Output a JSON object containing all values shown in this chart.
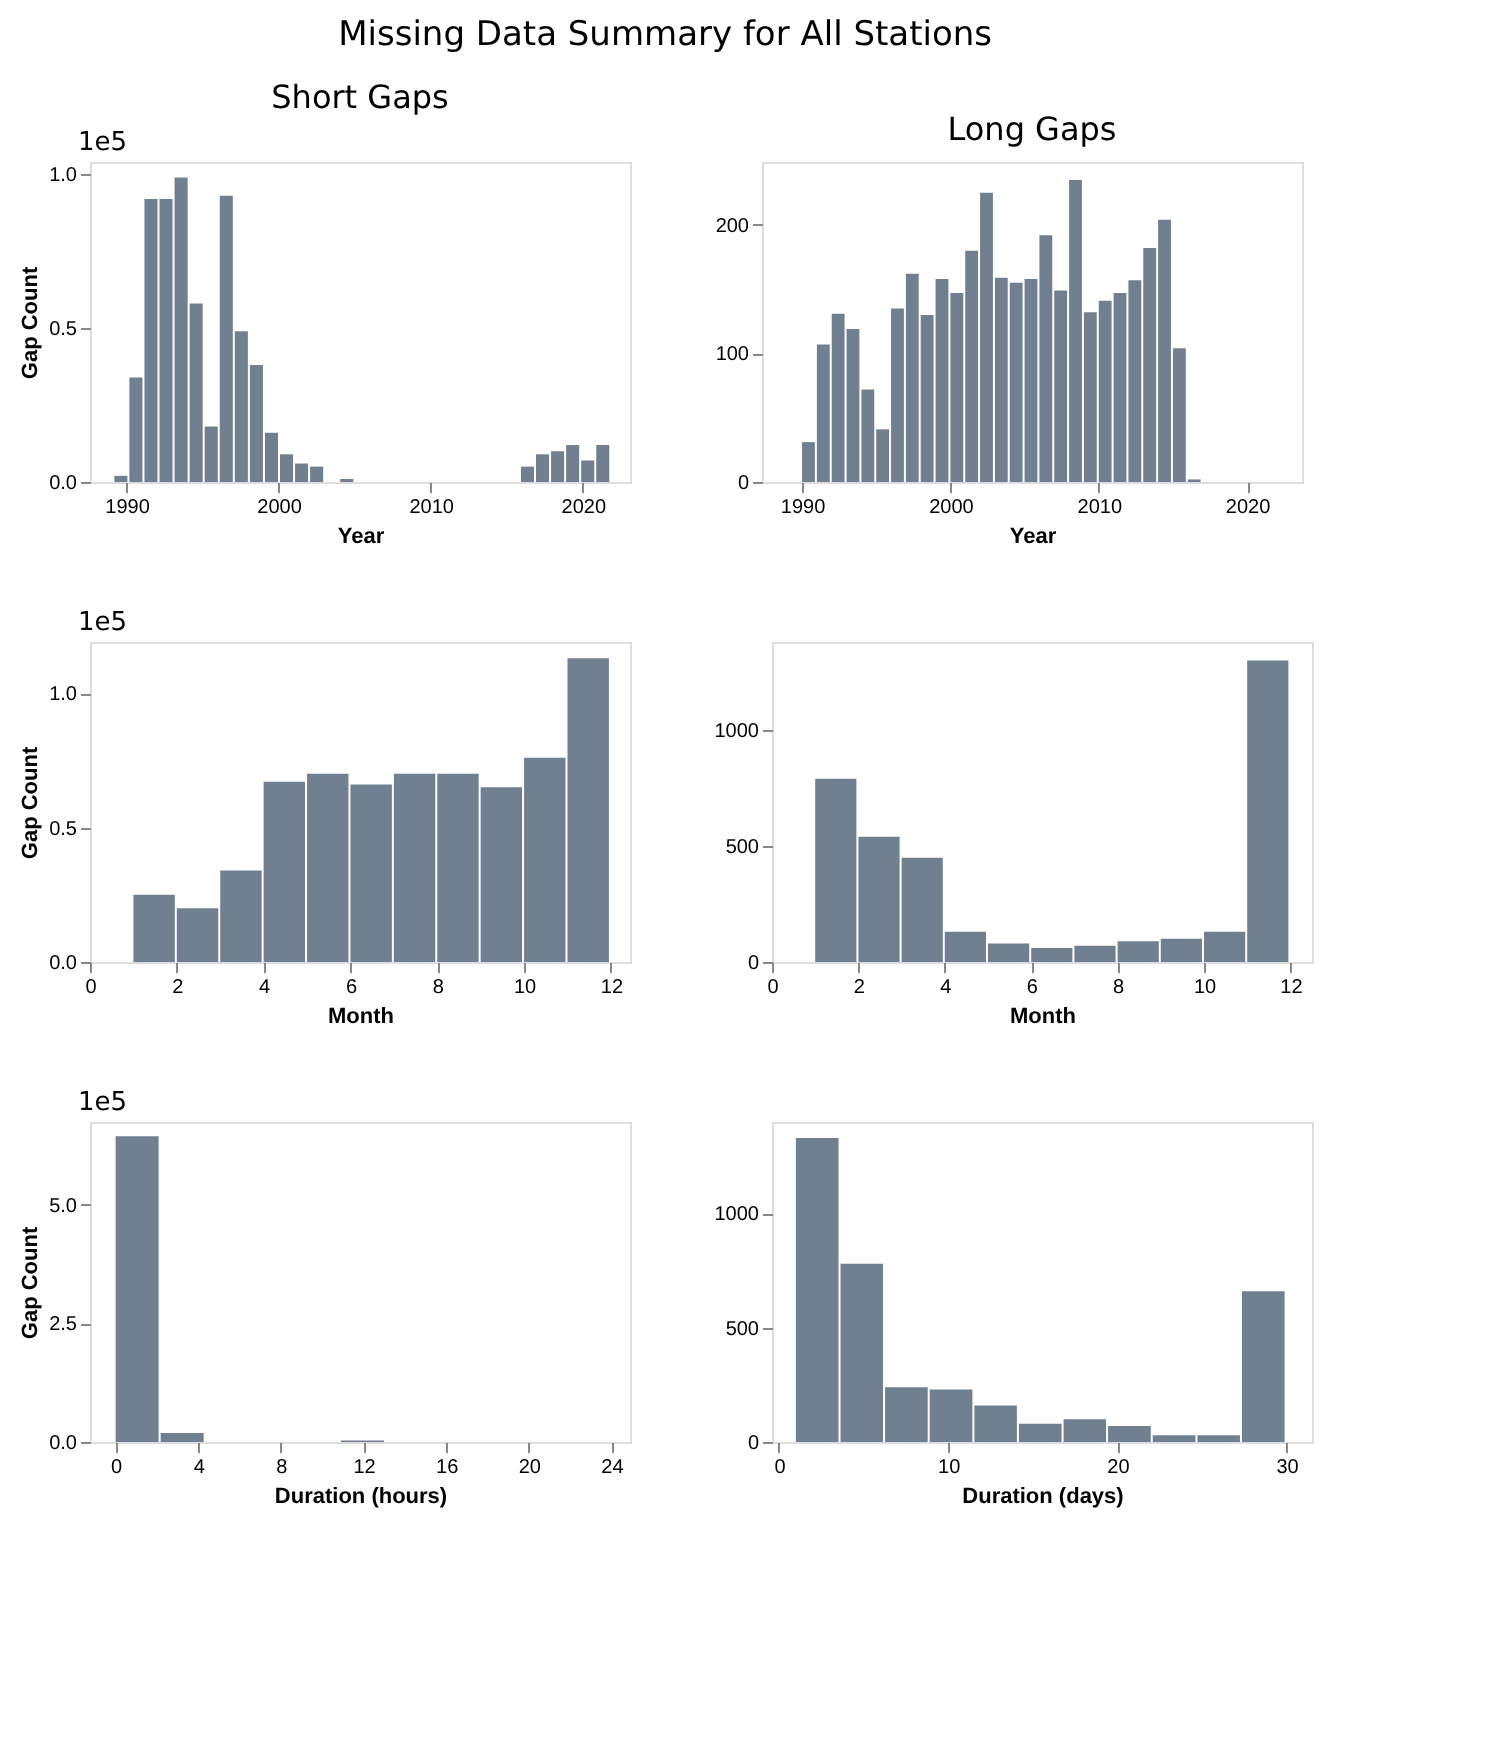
{
  "chart_data": [
    {
      "type": "histogram",
      "title": "Short Gaps",
      "xlabel": "Year",
      "ylabel": "Gap Count",
      "color": "#708090",
      "annotations": [
        "Missing Data Summary for All Stations",
        "1e5"
      ],
      "bins": [
        1989.2,
        1990.19,
        1991.18,
        1992.17,
        1993.16,
        1994.15,
        1995.14,
        1996.13,
        1997.12,
        1998.11,
        1999.1,
        2000.09,
        2001.08,
        2002.07,
        2003.06,
        2004.05,
        2005.04,
        2006.03,
        2007.02,
        2008.01,
        2009.0,
        2009.99,
        2010.98,
        2011.97,
        2012.96,
        2013.95,
        2014.94,
        2015.93,
        2016.92,
        2017.91,
        2018.9,
        2019.89,
        2020.88,
        2021.87
      ],
      "values": [
        0.02,
        0.34,
        0.92,
        0.92,
        0.99,
        0.58,
        0.18,
        0.93,
        0.49,
        0.38,
        0.16,
        0.09,
        0.06,
        0.05,
        0,
        0.01,
        0,
        0,
        0,
        0,
        0,
        0,
        0,
        0,
        0,
        0,
        0,
        0.05,
        0.09,
        0.1,
        0.12,
        0.07,
        0.12
      ],
      "xlim": [
        1987.6,
        2023.1
      ],
      "xticks": [
        1990,
        2000,
        2010,
        2020
      ],
      "ylim": [
        0,
        1.04
      ],
      "yticks": [
        {
          "value": 0,
          "label": "0.0"
        },
        0.5,
        {
          "value": 1,
          "label": "1.0"
        }
      ]
    },
    {
      "type": "histogram",
      "title": "Long Gaps",
      "xlabel": "Year",
      "color": "#708090",
      "bins": [
        1990,
        1991,
        1992,
        1993,
        1994,
        1995,
        1996,
        1997,
        1998,
        1999,
        2000,
        2001,
        2002,
        2003,
        2004,
        2005,
        2006,
        2007,
        2008,
        2009,
        2010,
        2011,
        2012,
        2013,
        2014,
        2015,
        2016,
        2017,
        2018,
        2019,
        2020,
        2021,
        2022
      ],
      "values": [
        31,
        107,
        131,
        119,
        72,
        41,
        135,
        162,
        130,
        158,
        147,
        180,
        225,
        159,
        155,
        158,
        192,
        149,
        235,
        132,
        141,
        147,
        157,
        182,
        204,
        104,
        2,
        0,
        0,
        0,
        0,
        0
      ],
      "xlim": [
        1987.3,
        2023.7
      ],
      "xticks": [
        1990,
        2000,
        2010,
        2020
      ],
      "ylim": [
        0,
        249
      ],
      "yticks": [
        0,
        100,
        200
      ]
    },
    {
      "type": "histogram",
      "xlabel": "Month",
      "ylabel": "Gap Count",
      "color": "#708090",
      "annotations": [
        "1e5"
      ],
      "bins": [
        1,
        2,
        3,
        4,
        5,
        6,
        7,
        8,
        9,
        10,
        11,
        12
      ],
      "values": [
        0.25,
        0.2,
        0.34,
        0.67,
        0.7,
        0.66,
        0.7,
        0.7,
        0.65,
        0.76,
        1.13
      ],
      "xlim": [
        0,
        12.44
      ],
      "xticks": [
        0,
        2,
        4,
        6,
        8,
        10,
        12
      ],
      "ylim": [
        0,
        1.19
      ],
      "yticks": [
        {
          "value": 0,
          "label": "0.0"
        },
        0.5,
        {
          "value": 1,
          "label": "1.0"
        }
      ]
    },
    {
      "type": "histogram",
      "xlabel": "Month",
      "color": "#708090",
      "bins": [
        1,
        2,
        3,
        4,
        5,
        6,
        7,
        8,
        9,
        10,
        11,
        12
      ],
      "values": [
        790,
        540,
        450,
        130,
        80,
        60,
        70,
        90,
        100,
        130,
        1300
      ],
      "xlim": [
        0,
        12.5
      ],
      "xticks": [
        0,
        2,
        4,
        6,
        8,
        10,
        12
      ],
      "ylim": [
        0,
        1380
      ],
      "yticks": [
        0,
        500,
        1000
      ]
    },
    {
      "type": "histogram",
      "xlabel": "Duration (hours)",
      "ylabel": "Gap Count",
      "color": "#708090",
      "annotations": [
        "1e5"
      ],
      "bins": [
        0,
        2.18,
        4.36,
        6.55,
        8.73,
        10.91,
        13.09,
        15.27,
        17.45,
        19.64,
        21.82,
        24
      ],
      "values": [
        6.44,
        0.19,
        0,
        0,
        0,
        0.03,
        0,
        0,
        0,
        0,
        0
      ],
      "xlim": [
        -1.24,
        24.9
      ],
      "xticks": [
        0,
        4,
        8,
        12,
        16,
        20,
        24
      ],
      "ylim": [
        0,
        6.74
      ],
      "yticks": [
        {
          "value": 0,
          "label": "0.0"
        },
        2.5,
        {
          "value": 5,
          "label": "5.0"
        }
      ]
    },
    {
      "type": "histogram",
      "xlabel": "Duration (days)",
      "color": "#708090",
      "bins": [
        1,
        3.64,
        6.27,
        8.91,
        11.55,
        14.18,
        16.82,
        19.45,
        22.09,
        24.73,
        27.36,
        30
      ],
      "values": [
        1330,
        780,
        240,
        230,
        160,
        80,
        100,
        70,
        30,
        30,
        660
      ],
      "xlim": [
        -0.41,
        31.5
      ],
      "xticks": [
        0,
        10,
        20,
        30
      ],
      "ylim": [
        0,
        1400
      ],
      "yticks": [
        0,
        500,
        1000
      ]
    }
  ]
}
